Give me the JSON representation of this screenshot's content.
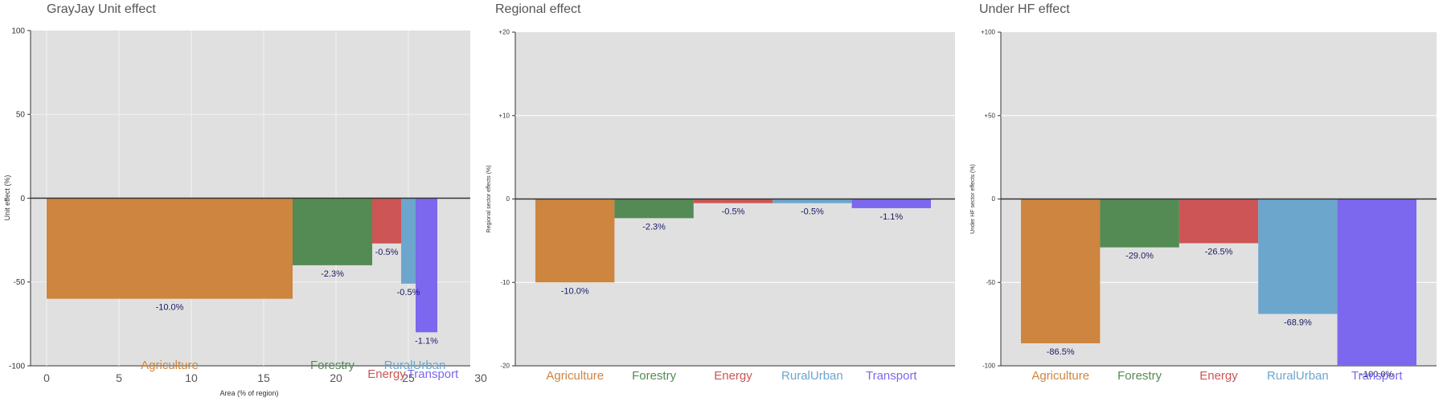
{
  "chart_data": [
    {
      "type": "bar",
      "title": "GrayJay Unit effect",
      "xlabel": "Area (% of region)",
      "ylabel": "Unit effect (%)",
      "xlim": [
        -2,
        30
      ],
      "ylim": [
        -100,
        100
      ],
      "xticks": [
        "0",
        "5",
        "10",
        "15",
        "20",
        "25",
        "30"
      ],
      "yticks": [
        "100",
        "50",
        "0",
        "-50",
        "-100"
      ],
      "grid": true,
      "bars": [
        {
          "category": "Agriculture",
          "x_start": 0.0,
          "x_end": 17.0,
          "value": -60,
          "label": "-10.0%",
          "color": "#CD853F"
        },
        {
          "category": "Forestry",
          "x_start": 17.0,
          "x_end": 22.5,
          "value": -40,
          "label": "-2.3%",
          "color": "#548B54"
        },
        {
          "category": "Energy",
          "x_start": 22.5,
          "x_end": 24.5,
          "value": -27,
          "label": "-0.5%",
          "color": "#CD5555"
        },
        {
          "category": "RuralUrban",
          "x_start": 24.5,
          "x_end": 25.5,
          "value": -51,
          "label": "-0.5%",
          "color": "#6CA6CD"
        },
        {
          "category": "Transport",
          "x_start": 25.5,
          "x_end": 27.0,
          "value": -80,
          "label": "-1.1%",
          "color": "#7B68EE"
        }
      ]
    },
    {
      "type": "bar",
      "title": "Regional effect",
      "ylabel": "Regional sector effects (%)",
      "ylim": [
        -20,
        20
      ],
      "yticks": [
        "+20",
        "+10",
        "0",
        "-10",
        "-20"
      ],
      "grid": true,
      "categories": [
        "Agriculture",
        "Forestry",
        "Energy",
        "RuralUrban",
        "Transport"
      ],
      "values": [
        -10.0,
        -2.3,
        -0.5,
        -0.5,
        -1.1
      ],
      "labels": [
        "-10.0%",
        "-2.3%",
        "-0.5%",
        "-0.5%",
        "-1.1%"
      ],
      "colors": [
        "#CD853F",
        "#548B54",
        "#CD5555",
        "#6CA6CD",
        "#7B68EE"
      ]
    },
    {
      "type": "bar",
      "title": "Under HF effect",
      "ylabel": "Under HF sector effects (%)",
      "ylim": [
        -100,
        100
      ],
      "yticks": [
        "+100",
        "+50",
        "0",
        "-50",
        "-100"
      ],
      "grid": true,
      "categories": [
        "Agriculture",
        "Forestry",
        "Energy",
        "RuralUrban",
        "Transport"
      ],
      "values": [
        -86.5,
        -29.0,
        -26.5,
        -68.9,
        -100.0
      ],
      "labels": [
        "-86.5%",
        "-29.0%",
        "-26.5%",
        "-68.9%",
        "-100.0%"
      ],
      "colors": [
        "#CD853F",
        "#548B54",
        "#CD5555",
        "#6CA6CD",
        "#7B68EE"
      ]
    }
  ]
}
